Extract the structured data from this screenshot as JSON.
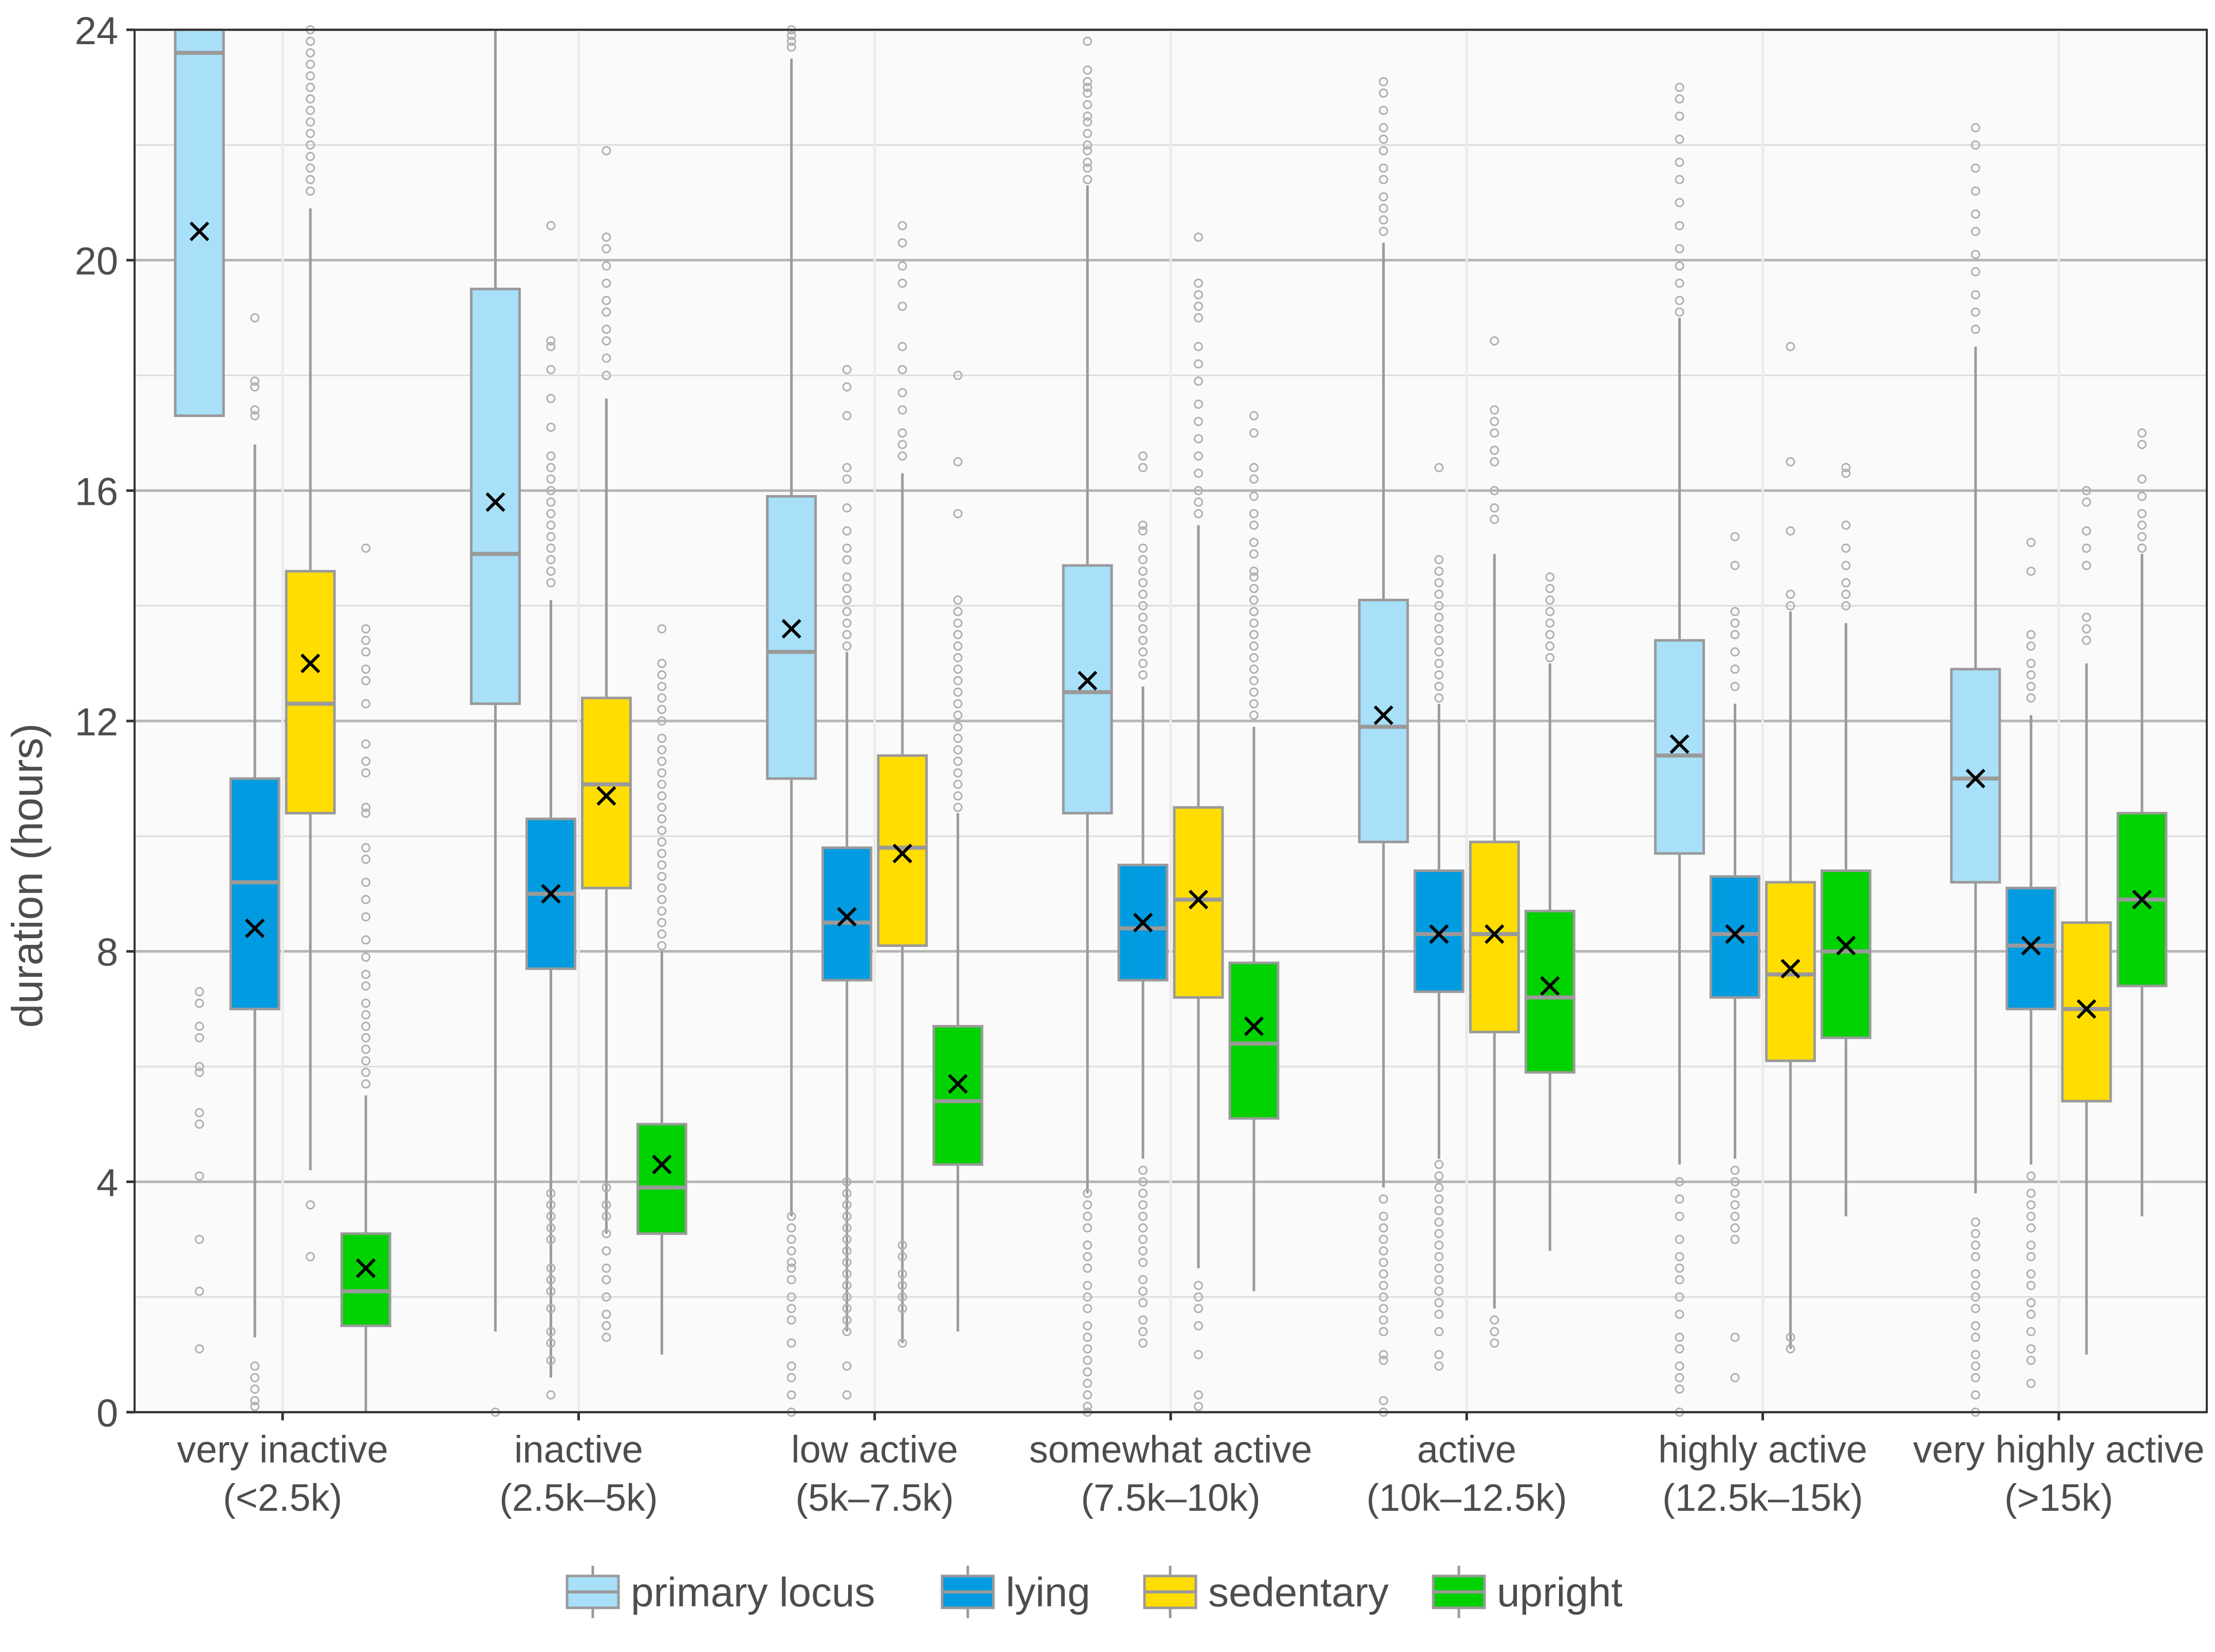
{
  "chart_data": {
    "type": "boxplot",
    "title": "",
    "xlabel": "",
    "ylabel": "duration (hours)",
    "ylim": [
      0,
      24
    ],
    "yticks": [
      0,
      4,
      8,
      12,
      16,
      20,
      24
    ],
    "grid": true,
    "legend_position": "bottom",
    "categories": [
      {
        "line1": "very inactive",
        "line2": "(<2.5k)"
      },
      {
        "line1": "inactive",
        "line2": "(2.5k–5k)"
      },
      {
        "line1": "low active",
        "line2": "(5k–7.5k)"
      },
      {
        "line1": "somewhat active",
        "line2": "(7.5k–10k)"
      },
      {
        "line1": "active",
        "line2": "(10k–12.5k)"
      },
      {
        "line1": "highly active",
        "line2": "(12.5k–15k)"
      },
      {
        "line1": "very highly active",
        "line2": "(>15k)"
      }
    ],
    "series": [
      {
        "name": "primary locus",
        "color": "#a8e0fa",
        "boxes": [
          {
            "lw": 17.3,
            "q1": 17.3,
            "median": 23.6,
            "q3": 24.0,
            "uw": 24.0,
            "mean": 20.5,
            "outliers": [
              7.3,
              7.1,
              6.7,
              6.5,
              6.0,
              5.9,
              5.2,
              5.0,
              4.1,
              3.0,
              2.1,
              1.1
            ]
          },
          {
            "lw": 1.4,
            "q1": 12.3,
            "median": 14.9,
            "q3": 19.5,
            "uw": 24.0,
            "mean": 15.8,
            "outliers": [
              0.0
            ]
          },
          {
            "lw": 3.4,
            "q1": 11.0,
            "median": 13.2,
            "q3": 15.9,
            "uw": 23.5,
            "mean": 13.6,
            "outliers": [
              24.0,
              23.9,
              23.8,
              23.7,
              3.4,
              3.2,
              3.0,
              2.8,
              2.6,
              2.5,
              2.3,
              2.0,
              1.8,
              1.6,
              1.2,
              0.8,
              0.6,
              0.3,
              0.0
            ]
          },
          {
            "lw": 3.8,
            "q1": 10.4,
            "median": 12.5,
            "q3": 14.7,
            "uw": 21.3,
            "mean": 12.7,
            "outliers": [
              23.8,
              23.3,
              23.1,
              23.0,
              22.9,
              22.7,
              22.5,
              22.4,
              22.2,
              22.0,
              21.9,
              21.7,
              21.6,
              21.4,
              3.8,
              3.6,
              3.4,
              3.2,
              2.9,
              2.7,
              2.5,
              2.2,
              2.0,
              1.8,
              1.5,
              1.3,
              1.1,
              0.9,
              0.7,
              0.5,
              0.3,
              0.1,
              0.0
            ]
          },
          {
            "lw": 3.9,
            "q1": 9.9,
            "median": 11.9,
            "q3": 14.1,
            "uw": 20.3,
            "mean": 12.1,
            "outliers": [
              23.1,
              22.9,
              22.6,
              22.3,
              22.1,
              21.9,
              21.6,
              21.4,
              21.1,
              20.9,
              20.7,
              20.5,
              3.7,
              3.4,
              3.2,
              3.0,
              2.8,
              2.6,
              2.4,
              2.2,
              2.0,
              1.8,
              1.6,
              1.4,
              1.0,
              0.9,
              0.2,
              0.0
            ]
          },
          {
            "lw": 4.3,
            "q1": 9.7,
            "median": 11.4,
            "q3": 13.4,
            "uw": 19.0,
            "mean": 11.6,
            "outliers": [
              23.0,
              22.8,
              22.5,
              22.1,
              21.7,
              21.4,
              21.0,
              20.6,
              20.2,
              19.9,
              19.6,
              19.3,
              19.1,
              4.0,
              3.7,
              3.4,
              3.0,
              2.7,
              2.5,
              2.3,
              2.0,
              1.7,
              1.3,
              1.1,
              0.8,
              0.6,
              0.4,
              0.0
            ]
          },
          {
            "lw": 3.8,
            "q1": 9.2,
            "median": 11.0,
            "q3": 12.9,
            "uw": 18.5,
            "mean": 11.0,
            "outliers": [
              22.3,
              22.0,
              21.6,
              21.2,
              20.8,
              20.5,
              20.1,
              19.8,
              19.4,
              19.1,
              18.8,
              3.3,
              3.1,
              2.9,
              2.7,
              2.4,
              2.2,
              2.0,
              1.8,
              1.5,
              1.3,
              1.0,
              0.8,
              0.6,
              0.3,
              0.0
            ]
          }
        ]
      },
      {
        "name": "lying",
        "color": "#009be0",
        "boxes": [
          {
            "lw": 1.3,
            "q1": 7.0,
            "median": 9.2,
            "q3": 11.0,
            "uw": 16.8,
            "mean": 8.4,
            "outliers": [
              19.0,
              17.9,
              17.8,
              17.4,
              17.3,
              0.8,
              0.6,
              0.4,
              0.2,
              0.1
            ]
          },
          {
            "lw": 0.6,
            "q1": 7.7,
            "median": 9.0,
            "q3": 10.3,
            "uw": 14.1,
            "mean": 9.0,
            "outliers": [
              20.6,
              18.6,
              18.5,
              18.1,
              17.6,
              17.1,
              16.6,
              16.4,
              16.2,
              16.0,
              15.8,
              15.6,
              15.4,
              15.2,
              15.0,
              14.8,
              14.6,
              14.4,
              3.8,
              3.6,
              3.4,
              3.2,
              3.0,
              2.5,
              2.3,
              2.1,
              1.8,
              1.4,
              1.2,
              0.9,
              0.3
            ]
          },
          {
            "lw": 1.4,
            "q1": 7.5,
            "median": 8.5,
            "q3": 9.8,
            "uw": 13.2,
            "mean": 8.6,
            "outliers": [
              18.1,
              17.8,
              17.3,
              16.4,
              16.2,
              15.7,
              15.3,
              15.0,
              14.8,
              14.5,
              14.3,
              14.1,
              13.9,
              13.7,
              13.5,
              13.3,
              4.0,
              3.8,
              3.6,
              3.4,
              3.2,
              3.0,
              2.8,
              2.6,
              2.4,
              2.2,
              2.0,
              1.8,
              1.6,
              1.4,
              0.8,
              0.3
            ]
          },
          {
            "lw": 4.4,
            "q1": 7.5,
            "median": 8.4,
            "q3": 9.5,
            "uw": 12.6,
            "mean": 8.5,
            "outliers": [
              16.6,
              16.4,
              15.4,
              15.3,
              15.0,
              14.8,
              14.6,
              14.4,
              14.2,
              14.0,
              13.8,
              13.6,
              13.4,
              13.2,
              13.0,
              12.8,
              4.2,
              4.0,
              3.8,
              3.6,
              3.4,
              3.2,
              3.0,
              2.8,
              2.6,
              2.3,
              2.1,
              1.9,
              1.6,
              1.4,
              1.2
            ]
          },
          {
            "lw": 4.4,
            "q1": 7.3,
            "median": 8.3,
            "q3": 9.4,
            "uw": 12.3,
            "mean": 8.3,
            "outliers": [
              16.4,
              14.8,
              14.6,
              14.4,
              14.2,
              14.0,
              13.8,
              13.6,
              13.4,
              13.2,
              13.0,
              12.8,
              12.6,
              12.4,
              4.3,
              4.1,
              3.9,
              3.7,
              3.5,
              3.3,
              3.1,
              2.9,
              2.7,
              2.5,
              2.3,
              2.1,
              1.9,
              1.7,
              1.4,
              1.0,
              0.8
            ]
          },
          {
            "lw": 4.4,
            "q1": 7.2,
            "median": 8.3,
            "q3": 9.3,
            "uw": 12.3,
            "mean": 8.3,
            "outliers": [
              15.2,
              14.7,
              13.9,
              13.7,
              13.5,
              13.2,
              12.9,
              12.6,
              4.2,
              4.0,
              3.8,
              3.6,
              3.4,
              3.2,
              3.0,
              1.3,
              0.6
            ]
          },
          {
            "lw": 4.3,
            "q1": 7.0,
            "median": 8.1,
            "q3": 9.1,
            "uw": 12.1,
            "mean": 8.1,
            "outliers": [
              15.1,
              14.6,
              13.5,
              13.3,
              13.0,
              12.8,
              12.6,
              12.4,
              4.1,
              3.8,
              3.6,
              3.4,
              3.2,
              2.9,
              2.7,
              2.4,
              2.2,
              1.9,
              1.7,
              1.4,
              1.1,
              0.9,
              0.5
            ]
          }
        ]
      },
      {
        "name": "sedentary",
        "color": "#ffdd00",
        "boxes": [
          {
            "lw": 4.2,
            "q1": 10.4,
            "median": 12.3,
            "q3": 14.6,
            "uw": 20.9,
            "mean": 13.0,
            "outliers": [
              24.0,
              23.8,
              23.6,
              23.4,
              23.2,
              23.0,
              22.8,
              22.6,
              22.4,
              22.2,
              22.0,
              21.8,
              21.6,
              21.4,
              21.2,
              3.6,
              2.7
            ]
          },
          {
            "lw": 3.1,
            "q1": 9.1,
            "median": 10.9,
            "q3": 12.4,
            "uw": 17.6,
            "mean": 10.7,
            "outliers": [
              21.9,
              20.4,
              20.2,
              19.9,
              19.6,
              19.3,
              19.1,
              18.8,
              18.6,
              18.3,
              18.0,
              3.9,
              3.6,
              3.4,
              3.1,
              2.8,
              2.5,
              2.3,
              2.0,
              1.7,
              1.5,
              1.3
            ]
          },
          {
            "lw": 1.2,
            "q1": 8.1,
            "median": 9.8,
            "q3": 11.4,
            "uw": 16.3,
            "mean": 9.7,
            "outliers": [
              20.6,
              20.3,
              19.9,
              19.6,
              19.2,
              18.5,
              18.1,
              17.7,
              17.4,
              17.0,
              16.8,
              16.6,
              2.9,
              2.7,
              2.4,
              2.2,
              2.0,
              1.8,
              1.2
            ]
          },
          {
            "lw": 2.5,
            "q1": 7.2,
            "median": 8.9,
            "q3": 10.5,
            "uw": 15.4,
            "mean": 8.9,
            "outliers": [
              20.4,
              19.6,
              19.4,
              19.2,
              19.0,
              18.5,
              18.2,
              17.9,
              17.5,
              17.2,
              16.9,
              16.6,
              16.3,
              16.0,
              15.8,
              15.6,
              2.2,
              2.0,
              1.8,
              1.5,
              1.0,
              0.3,
              0.1
            ]
          },
          {
            "lw": 1.8,
            "q1": 6.6,
            "median": 8.3,
            "q3": 9.9,
            "uw": 14.9,
            "mean": 8.3,
            "outliers": [
              18.6,
              17.4,
              17.2,
              17.0,
              16.7,
              16.5,
              16.0,
              15.7,
              15.5,
              1.6,
              1.4,
              1.2
            ]
          },
          {
            "lw": 1.1,
            "q1": 6.1,
            "median": 7.6,
            "q3": 9.2,
            "uw": 13.9,
            "mean": 7.7,
            "outliers": [
              18.5,
              16.5,
              15.3,
              14.2,
              14.0,
              1.3,
              1.1
            ]
          },
          {
            "lw": 1.0,
            "q1": 5.4,
            "median": 7.0,
            "q3": 8.5,
            "uw": 13.0,
            "mean": 7.0,
            "outliers": [
              16.0,
              15.8,
              15.3,
              15.0,
              14.7,
              13.8,
              13.6,
              13.4
            ]
          }
        ]
      },
      {
        "name": "upright",
        "color": "#00d100",
        "boxes": [
          {
            "lw": 0.0,
            "q1": 1.5,
            "median": 2.1,
            "q3": 3.1,
            "uw": 5.5,
            "mean": 2.5,
            "outliers": [
              15.0,
              13.6,
              13.4,
              13.2,
              12.9,
              12.7,
              12.3,
              11.6,
              11.3,
              11.1,
              10.5,
              10.4,
              9.8,
              9.6,
              9.2,
              8.9,
              8.6,
              8.2,
              7.9,
              7.6,
              7.4,
              7.1,
              6.9,
              6.7,
              6.5,
              6.3,
              6.1,
              5.9,
              5.7
            ]
          },
          {
            "lw": 1.0,
            "q1": 3.1,
            "median": 3.9,
            "q3": 5.0,
            "uw": 8.0,
            "mean": 4.3,
            "outliers": [
              13.6,
              13.0,
              12.8,
              12.6,
              12.4,
              12.2,
              12.0,
              11.7,
              11.5,
              11.3,
              11.1,
              10.9,
              10.7,
              10.5,
              10.3,
              10.1,
              9.9,
              9.7,
              9.5,
              9.3,
              9.1,
              8.9,
              8.7,
              8.5,
              8.3,
              8.1
            ]
          },
          {
            "lw": 1.4,
            "q1": 4.3,
            "median": 5.4,
            "q3": 6.7,
            "uw": 10.4,
            "mean": 5.7,
            "outliers": [
              18.0,
              16.5,
              15.6,
              14.1,
              13.9,
              13.7,
              13.5,
              13.3,
              13.1,
              12.9,
              12.7,
              12.5,
              12.3,
              12.1,
              11.9,
              11.7,
              11.5,
              11.3,
              11.1,
              10.9,
              10.7,
              10.5
            ]
          },
          {
            "lw": 2.1,
            "q1": 5.1,
            "median": 6.4,
            "q3": 7.8,
            "uw": 11.9,
            "mean": 6.7,
            "outliers": [
              17.3,
              17.0,
              16.4,
              16.2,
              15.9,
              15.6,
              15.4,
              15.1,
              14.9,
              14.6,
              14.5,
              14.3,
              14.1,
              13.9,
              13.7,
              13.5,
              13.3,
              13.1,
              12.9,
              12.7,
              12.5,
              12.3,
              12.1
            ]
          },
          {
            "lw": 2.8,
            "q1": 5.9,
            "median": 7.2,
            "q3": 8.7,
            "uw": 13.0,
            "mean": 7.4,
            "outliers": [
              14.5,
              14.3,
              14.1,
              13.9,
              13.7,
              13.5,
              13.3,
              13.1
            ]
          },
          {
            "lw": 3.4,
            "q1": 6.5,
            "median": 8.0,
            "q3": 9.4,
            "uw": 13.7,
            "mean": 8.1,
            "outliers": [
              16.4,
              16.3,
              15.4,
              15.0,
              14.7,
              14.4,
              14.2,
              14.0
            ]
          },
          {
            "lw": 3.4,
            "q1": 7.4,
            "median": 8.9,
            "q3": 10.4,
            "uw": 14.9,
            "mean": 8.9,
            "outliers": [
              17.0,
              16.8,
              16.2,
              15.9,
              15.6,
              15.4,
              15.2,
              15.0
            ]
          }
        ]
      }
    ]
  }
}
